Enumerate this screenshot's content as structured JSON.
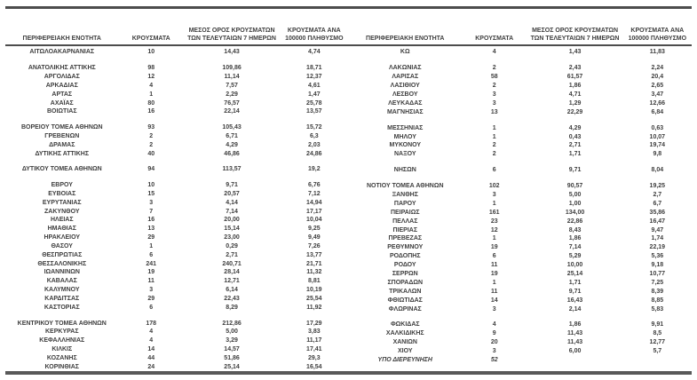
{
  "report": {
    "columns": {
      "name": "ΠΕΡΙΦΕΡΕΙΑΚΗ ΕΝΟΤΗΤΑ",
      "cases": "ΚΡΟΥΣΜΑΤΑ",
      "avg7": "ΜΕΣΟΣ ΟΡΟΣ ΚΡΟΥΣΜΑΤΩΝ ΤΩΝ ΤΕΛΕΥΤΑΙΩΝ 7 ΗΜΕΡΩΝ",
      "per100k": "ΚΡΟΥΣΜΑΤΑ ΑΝΑ 100000 ΠΛΗΘΥΣΜΟ"
    },
    "accent_border_color": "#4d4d4d",
    "text_color": "#3f3f3f",
    "tables": [
      {
        "rows": [
          [
            "ΑΙΤΩΛΟΑΚΑΡΝΑΝΙΑΣ",
            "10",
            "14,43",
            "4,74"
          ],
          null,
          [
            "ΑΝΑΤΟΛΙΚΗΣ ΑΤΤΙΚΗΣ",
            "98",
            "109,86",
            "18,71"
          ],
          [
            "ΑΡΓΟΛΙΔΑΣ",
            "12",
            "11,14",
            "12,37"
          ],
          [
            "ΑΡΚΑΔΙΑΣ",
            "4",
            "7,57",
            "4,61"
          ],
          [
            "ΑΡΤΑΣ",
            "1",
            "2,29",
            "1,47"
          ],
          [
            "ΑΧΑΪΑΣ",
            "80",
            "76,57",
            "25,78"
          ],
          [
            "ΒΟΙΩΤΙΑΣ",
            "16",
            "22,14",
            "13,57"
          ],
          null,
          [
            "ΒΟΡΕΙΟΥ ΤΟΜΕΑ ΑΘΗΝΩΝ",
            "93",
            "105,43",
            "15,72"
          ],
          [
            "ΓΡΕΒΕΝΩΝ",
            "2",
            "6,71",
            "6,3"
          ],
          [
            "ΔΡΑΜΑΣ",
            "2",
            "4,29",
            "2,03"
          ],
          [
            "ΔΥΤΙΚΗΣ ΑΤΤΙΚΗΣ",
            "40",
            "46,86",
            "24,86"
          ],
          null,
          [
            "ΔΥΤΙΚΟΥ ΤΟΜΕΑ ΑΘΗΝΩΝ",
            "94",
            "113,57",
            "19,2"
          ],
          null,
          [
            "ΕΒΡΟΥ",
            "10",
            "9,71",
            "6,76"
          ],
          [
            "ΕΥΒΟΙΑΣ",
            "15",
            "20,57",
            "7,12"
          ],
          [
            "ΕΥΡΥΤΑΝΙΑΣ",
            "3",
            "4,14",
            "14,94"
          ],
          [
            "ΖΑΚΥΝΘΟΥ",
            "7",
            "7,14",
            "17,17"
          ],
          [
            "ΗΛΕΙΑΣ",
            "16",
            "20,00",
            "10,04"
          ],
          [
            "ΗΜΑΘΙΑΣ",
            "13",
            "15,14",
            "9,25"
          ],
          [
            "ΗΡΑΚΛΕΙΟΥ",
            "29",
            "23,00",
            "9,49"
          ],
          [
            "ΘΑΣΟΥ",
            "1",
            "0,29",
            "7,26"
          ],
          [
            "ΘΕΣΠΡΩΤΙΑΣ",
            "6",
            "2,71",
            "13,77"
          ],
          [
            "ΘΕΣΣΑΛΟΝΙΚΗΣ",
            "241",
            "240,71",
            "21,71"
          ],
          [
            "ΙΩΑΝΝΙΝΩΝ",
            "19",
            "28,14",
            "11,32"
          ],
          [
            "ΚΑΒΑΛΑΣ",
            "11",
            "12,71",
            "8,81"
          ],
          [
            "ΚΑΛΥΜΝΟΥ",
            "3",
            "6,14",
            "10,19"
          ],
          [
            "ΚΑΡΔΙΤΣΑΣ",
            "29",
            "22,43",
            "25,54"
          ],
          [
            "ΚΑΣΤΟΡΙΑΣ",
            "6",
            "8,29",
            "11,92"
          ],
          null,
          [
            "ΚΕΝΤΡΙΚΟΥ ΤΟΜΕΑ ΑΘΗΝΩΝ",
            "178",
            "212,86",
            "17,29"
          ],
          [
            "ΚΕΡΚΥΡΑΣ",
            "4",
            "5,00",
            "3,83"
          ],
          [
            "ΚΕΦΑΛΛΗΝΙΑΣ",
            "4",
            "3,29",
            "11,17"
          ],
          [
            "ΚΙΛΚΙΣ",
            "14",
            "14,57",
            "17,41"
          ],
          [
            "ΚΟΖΑΝΗΣ",
            "44",
            "51,86",
            "29,3"
          ],
          [
            "ΚΟΡΙΝΘΙΑΣ",
            "24",
            "25,14",
            "16,54"
          ]
        ]
      },
      {
        "rows": [
          [
            "ΚΩ",
            "4",
            "1,43",
            "11,83"
          ],
          null,
          [
            "ΛΑΚΩΝΙΑΣ",
            "2",
            "2,43",
            "2,24"
          ],
          [
            "ΛΑΡΙΣΑΣ",
            "58",
            "61,57",
            "20,4"
          ],
          [
            "ΛΑΣΙΘΙΟΥ",
            "2",
            "1,86",
            "2,65"
          ],
          [
            "ΛΕΣΒΟΥ",
            "3",
            "4,71",
            "3,47"
          ],
          [
            "ΛΕΥΚΑΔΑΣ",
            "3",
            "1,29",
            "12,66"
          ],
          [
            "ΜΑΓΝΗΣΙΑΣ",
            "13",
            "22,29",
            "6,84"
          ],
          null,
          [
            "ΜΕΣΣΗΝΙΑΣ",
            "1",
            "4,29",
            "0,63"
          ],
          [
            "ΜΗΛΟΥ",
            "1",
            "0,43",
            "10,07"
          ],
          [
            "ΜΥΚΟΝΟΥ",
            "2",
            "2,71",
            "19,74"
          ],
          [
            "ΝΑΞΟΥ",
            "2",
            "1,71",
            "9,8"
          ],
          null,
          [
            "ΝΗΣΩΝ",
            "6",
            "9,71",
            "8,04"
          ],
          null,
          [
            "ΝΟΤΙΟΥ ΤΟΜΕΑ ΑΘΗΝΩΝ",
            "102",
            "90,57",
            "19,25"
          ],
          [
            "ΞΑΝΘΗΣ",
            "3",
            "5,00",
            "2,7"
          ],
          [
            "ΠΑΡΟΥ",
            "1",
            "1,00",
            "6,7"
          ],
          [
            "ΠΕΙΡΑΙΩΣ",
            "161",
            "134,00",
            "35,86"
          ],
          [
            "ΠΕΛΛΑΣ",
            "23",
            "22,86",
            "16,47"
          ],
          [
            "ΠΙΕΡΙΑΣ",
            "12",
            "8,43",
            "9,47"
          ],
          [
            "ΠΡΕΒΕΖΑΣ",
            "1",
            "1,86",
            "1,74"
          ],
          [
            "ΡΕΘΥΜΝΟΥ",
            "19",
            "7,14",
            "22,19"
          ],
          [
            "ΡΟΔΟΠΗΣ",
            "6",
            "5,29",
            "5,36"
          ],
          [
            "ΡΟΔΟΥ",
            "11",
            "10,00",
            "9,18"
          ],
          [
            "ΣΕΡΡΩΝ",
            "19",
            "25,14",
            "10,77"
          ],
          [
            "ΣΠΟΡΑΔΩΝ",
            "1",
            "1,71",
            "7,25"
          ],
          [
            "ΤΡΙΚΑΛΩΝ",
            "11",
            "9,71",
            "8,39"
          ],
          [
            "ΦΘΙΩΤΙΔΑΣ",
            "14",
            "16,43",
            "8,85"
          ],
          [
            "ΦΛΩΡΙΝΑΣ",
            "3",
            "2,14",
            "5,83"
          ],
          null,
          [
            "ΦΩΚΙΔΑΣ",
            "4",
            "1,86",
            "9,91"
          ],
          [
            "ΧΑΛΚΙΔΙΚΗΣ",
            "9",
            "11,43",
            "8,5"
          ],
          [
            "ΧΑΝΙΩΝ",
            "20",
            "11,43",
            "12,77"
          ],
          [
            "ΧΙΟΥ",
            "3",
            "6,00",
            "5,7"
          ],
          [
            "ΥΠΟ ΔΙΕΡΕΥΝΗΣΗ",
            "52",
            "",
            "",
            "italic"
          ]
        ]
      }
    ]
  }
}
